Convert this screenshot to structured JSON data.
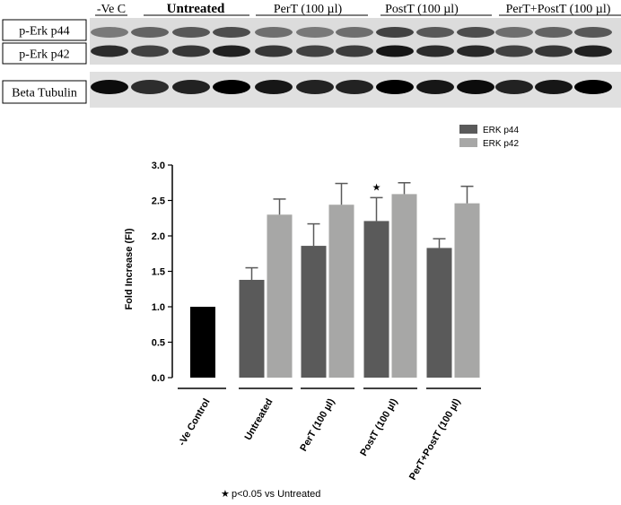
{
  "blot": {
    "header_labels": [
      "-Ve C",
      "Untreated",
      "PerT (100 µl)",
      "PostT (100 µl)",
      "PerT+PostT (100 µl)"
    ],
    "band_labels": [
      "p-Erk p44",
      "p-Erk p42",
      "Beta Tubulin"
    ]
  },
  "footnote": "p<0.05 vs Untreated",
  "chart_data": {
    "type": "bar",
    "categories": [
      "-Ve Control",
      "Untreated",
      "PerT (100  µl)",
      "PostT (100  µl)",
      "PerT+PostT (100  µl)"
    ],
    "series": [
      {
        "name": "ERK p44",
        "color": "#5a5a5a",
        "values": [
          1.0,
          1.38,
          1.86,
          2.21,
          1.83
        ],
        "errors": [
          0,
          0.17,
          0.31,
          0.33,
          0.13
        ]
      },
      {
        "name": "ERK p42",
        "color": "#a7a7a6",
        "values": [
          null,
          2.3,
          2.44,
          2.59,
          2.46
        ],
        "errors": [
          null,
          0.22,
          0.3,
          0.16,
          0.24
        ]
      }
    ],
    "control_color": "#000000",
    "significance_marker": {
      "category": "PostT (100  µl)",
      "series": "ERK p44",
      "symbol": "★"
    },
    "xlabel": "",
    "ylabel": "Fold Increase (FI)",
    "ylim": [
      0,
      3.0
    ],
    "yticks": [
      "0.0",
      "0.5",
      "1.0",
      "1.5",
      "2.0",
      "2.5",
      "3.0"
    ],
    "legend_position": "top-right",
    "grid": false
  }
}
